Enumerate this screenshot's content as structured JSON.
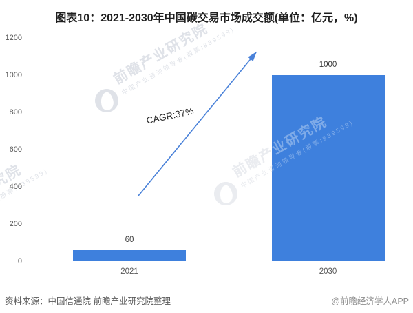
{
  "header": {
    "title": "图表10：2021-2030年中国碳交易市场成交额(单位：亿元，%)"
  },
  "chart_data": {
    "type": "bar",
    "title": "2021-2030年中国碳交易市场成交额",
    "unit": "亿元，%",
    "categories": [
      "2021",
      "2030"
    ],
    "values": [
      60,
      1000
    ],
    "value_labels": [
      "60",
      "1000"
    ],
    "ylim": [
      0,
      1200
    ],
    "yticks": [
      0,
      200,
      400,
      600,
      800,
      1000,
      1200
    ],
    "grid": false,
    "legend": "none",
    "bar_color": "#3e80dd",
    "axis_line_color": "#d8d8d8",
    "annotation": {
      "label": "CAGR:37%",
      "arrow_from": [
        201,
        284
      ],
      "arrow_to": [
        372,
        76
      ],
      "arrow_color": "#4a82d9",
      "label_center": [
        247,
        168
      ],
      "label_rotation_deg": -12
    }
  },
  "watermark": {
    "brand": "前瞻产业研究院",
    "sub": "中国产业咨询领导者(股票:839599)"
  },
  "footer": {
    "source": "资料来源：中国信通院 前瞻产业研究院整理",
    "credit": "@前瞻经济学人APP"
  }
}
